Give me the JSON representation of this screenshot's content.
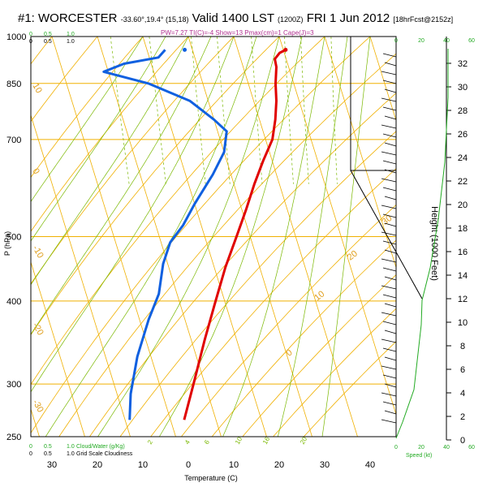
{
  "header": {
    "station": "#1: WORCESTER",
    "coords": "-33.60°,19.4° (15,18)",
    "valid": "Valid 1400 LST",
    "zulu": "(1200Z)",
    "date": "FRI 1 Jun 2012",
    "forecast": "[18hrFcst@2152z]",
    "indices": "PW=7.27 TI(C)=-4 Show=13 Pmax(cm)=1 Cape(J)=3"
  },
  "chart_data": {
    "type": "skew-t",
    "xlabel": "Temperature (C)",
    "ylabel": "P (hPa)",
    "y2label": "Height (1000 Feet)",
    "x_ticks": [
      "30",
      "20",
      "10",
      "0",
      "10",
      "20",
      "30",
      "40"
    ],
    "x_tick_values": [
      -30,
      -20,
      -10,
      0,
      10,
      20,
      30,
      40
    ],
    "pressure_ticks": [
      "250",
      "300",
      "400",
      "500",
      "700",
      "850",
      "1000"
    ],
    "pressure_values": [
      250,
      300,
      400,
      500,
      700,
      850,
      1000
    ],
    "height_ticks": [
      "0",
      "2",
      "4",
      "6",
      "8",
      "10",
      "12",
      "14",
      "16",
      "18",
      "20",
      "22",
      "24",
      "26",
      "28",
      "30",
      "32"
    ],
    "height_values": [
      0,
      2,
      4,
      6,
      8,
      10,
      12,
      14,
      16,
      18,
      20,
      22,
      24,
      26,
      28,
      30,
      32
    ],
    "temperature": {
      "color": "#e00000",
      "points": [
        [
          20.5,
          955
        ],
        [
          19,
          945
        ],
        [
          17.5,
          925
        ],
        [
          17.3,
          900
        ],
        [
          16,
          850
        ],
        [
          15,
          800
        ],
        [
          13.5,
          750
        ],
        [
          11.5,
          700
        ],
        [
          8,
          650
        ],
        [
          4.5,
          600
        ],
        [
          1,
          550
        ],
        [
          -3,
          500
        ],
        [
          -7.5,
          450
        ],
        [
          -12,
          400
        ],
        [
          -17,
          350
        ],
        [
          -22.5,
          300
        ],
        [
          -27,
          265
        ]
      ]
    },
    "dewpoint": {
      "color": "#1060e0",
      "points": [
        [
          -6,
          955
        ],
        [
          -8,
          930
        ],
        [
          -16,
          910
        ],
        [
          -21,
          885
        ],
        [
          -12,
          850
        ],
        [
          -4,
          800
        ],
        [
          0,
          750
        ],
        [
          2,
          720
        ],
        [
          0,
          670
        ],
        [
          -4,
          620
        ],
        [
          -10,
          560
        ],
        [
          -14,
          520
        ],
        [
          -18,
          490
        ],
        [
          -21,
          455
        ],
        [
          -24,
          410
        ],
        [
          -28,
          375
        ],
        [
          -33,
          330
        ],
        [
          -37,
          290
        ],
        [
          -39,
          265
        ]
      ]
    },
    "surface_point": {
      "t": -1.7,
      "p": 955,
      "color": "#1060e0"
    },
    "isotherm_labels": [
      "0",
      "10",
      "20",
      "30",
      "40"
    ],
    "dry_adiabat_labels": [
      "10",
      "0",
      "-10",
      "-20",
      "-30"
    ],
    "mixing_ratio_labels": [
      "2",
      "4",
      "6",
      "10",
      "16",
      "20"
    ],
    "left_scale": {
      "top": [
        "0",
        "0.5",
        "1.0"
      ],
      "top_black": [
        "0",
        "0.5",
        "1.0"
      ],
      "bottom_label": "Cloud/Water (g/Kg)",
      "bottom_label2": "Grid Scale Cloudiness"
    },
    "right_scale": {
      "labels": [
        "0",
        "20",
        "40",
        "60"
      ],
      "label_bottom": "Speed (kt)",
      "label_top": [
        "0",
        "20",
        "40",
        "60"
      ]
    },
    "wind_speed_profile_color": "#22aa22",
    "colors": {
      "isotherm": "#f0b000",
      "dry_adiabat": "#f0b000",
      "moist_adiabat": "#7ab800",
      "mixing_ratio": "#7ab800",
      "isobar": "#f0b000"
    }
  }
}
